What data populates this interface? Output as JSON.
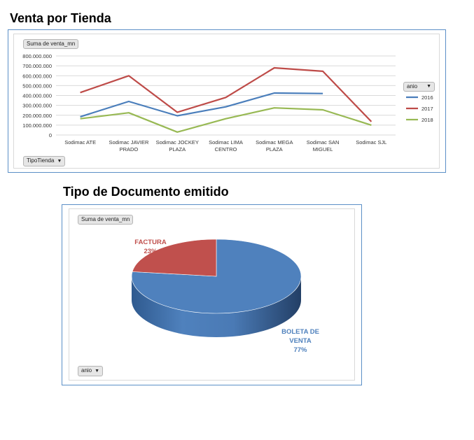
{
  "sheet": {
    "title_line": "Venta por Tienda",
    "title_pie": "Tipo de Documento emitido"
  },
  "line_chart": {
    "value_field_button": "Suma de venta_mn",
    "axis_field_button": "TipoTienda",
    "legend_field_button": "anio"
  },
  "pie_chart": {
    "value_field_button": "Suma de venta_mn",
    "legend_field_button": "anio"
  },
  "chart_data": [
    {
      "type": "line",
      "title": "Venta por Tienda",
      "categories": [
        [
          "Sodimac ATE"
        ],
        [
          "Sodimac JAVIER",
          "PRADO"
        ],
        [
          "Sodimac JOCKEY",
          "PLAZA"
        ],
        [
          "Sodimac LIMA",
          "CENTRO"
        ],
        [
          "Sodimac MEGA",
          "PLAZA"
        ],
        [
          "Sodimac SAN",
          "MIGUEL"
        ],
        [
          "Sodimac SJL"
        ]
      ],
      "series": [
        {
          "name": "2016",
          "color": "#4a7ebb",
          "values": [
            185000000,
            340000000,
            195000000,
            285000000,
            425000000,
            420000000,
            null
          ]
        },
        {
          "name": "2017",
          "color": "#be4b48",
          "values": [
            430000000,
            600000000,
            230000000,
            380000000,
            680000000,
            645000000,
            135000000
          ]
        },
        {
          "name": "2018",
          "color": "#98b954",
          "values": [
            165000000,
            225000000,
            30000000,
            165000000,
            275000000,
            255000000,
            100000000
          ]
        }
      ],
      "ylim": [
        0,
        800000000
      ],
      "yticks": [
        "800.000.000",
        "700.000.000",
        "600.000.000",
        "500.000.000",
        "400.000.000",
        "300.000.000",
        "200.000.000",
        "100.000.000",
        "0"
      ],
      "grid": true,
      "legend_position": "right"
    },
    {
      "type": "pie",
      "title": "Tipo de Documento emitido",
      "slices": [
        {
          "label_lines": [
            "BOLETA DE",
            "VENTA"
          ],
          "percent_label": "77%",
          "value": 77,
          "color": "#4f81bd",
          "label_color": "#4f81bd"
        },
        {
          "label_lines": [
            "FACTURA"
          ],
          "percent_label": "23%",
          "value": 23,
          "color": "#c0504d",
          "label_color": "#c0504d"
        }
      ]
    }
  ]
}
